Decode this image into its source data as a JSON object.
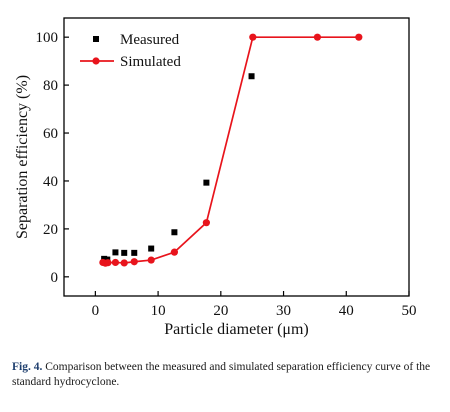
{
  "caption": {
    "label": "Fig. 4.",
    "text": "Comparison between the measured and simulated separation efficiency curve of the standard hydrocyclone."
  },
  "chart_data": {
    "type": "scatter",
    "title": "",
    "xlabel": "Particle diameter (μm)",
    "ylabel": "Separation efficiency (%)",
    "xlim": [
      -5,
      50
    ],
    "ylim": [
      -8,
      108
    ],
    "xticks": [
      0,
      10,
      20,
      30,
      40,
      50
    ],
    "yticks": [
      0,
      20,
      40,
      60,
      80,
      100
    ],
    "legend_position": "top-left",
    "grid": false,
    "series": [
      {
        "name": "Measured",
        "style": "markers",
        "marker": "square",
        "color": "#000000",
        "x": [
          1.4,
          1.9,
          3.2,
          4.6,
          6.2,
          8.9,
          12.6,
          17.7,
          24.9
        ],
        "y": [
          7.5,
          7.2,
          10.2,
          10.0,
          10.0,
          11.8,
          18.6,
          39.3,
          83.7
        ]
      },
      {
        "name": "Simulated",
        "style": "line+markers",
        "marker": "circle",
        "color": "#e8141c",
        "x": [
          1.2,
          1.6,
          2.0,
          3.2,
          4.6,
          6.2,
          8.9,
          12.6,
          17.7,
          25.1,
          35.4,
          42.0
        ],
        "y": [
          6.0,
          5.7,
          5.9,
          6.0,
          5.8,
          6.3,
          7.0,
          10.3,
          22.6,
          100,
          100,
          100
        ]
      }
    ]
  }
}
